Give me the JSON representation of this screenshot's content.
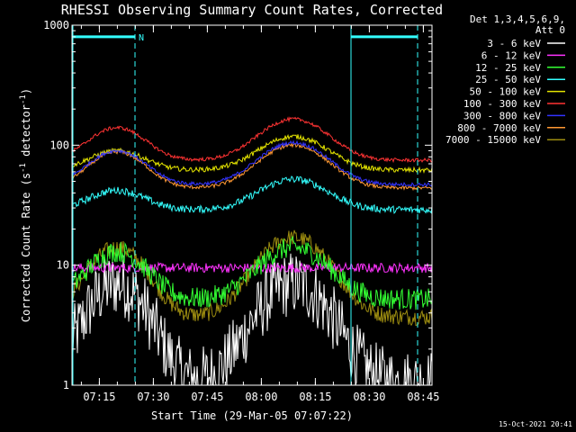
{
  "chart_data": {
    "type": "line",
    "title": "RHESSI Observing Summary Count Rates, Corrected",
    "xlabel": "Start Time (29-Mar-05 07:07:22)",
    "ylabel": "Corrected Count Rate (s",
    "ylabel_sup": "-1",
    "ylabel_tail": " detector",
    "ylabel_end": ")",
    "yscale": "log",
    "ylim": [
      1,
      1000
    ],
    "y_ticks": [
      {
        "v": 1,
        "label": "1"
      },
      {
        "v": 10,
        "label": "10"
      },
      {
        "v": 100,
        "label": "100"
      },
      {
        "v": 1000,
        "label": "1000"
      }
    ],
    "x_range_min": [
      0,
      100
    ],
    "x_ticks": [
      {
        "t": 7.6,
        "label": "07:15"
      },
      {
        "t": 22.6,
        "label": "07:30"
      },
      {
        "t": 37.6,
        "label": "07:45"
      },
      {
        "t": 52.6,
        "label": "08:00"
      },
      {
        "t": 67.6,
        "label": "08:15"
      },
      {
        "t": 82.6,
        "label": "08:30"
      },
      {
        "t": 97.6,
        "label": "08:45"
      }
    ],
    "legend_header": [
      "Det 1,3,4,5,6,9,",
      "Att 0"
    ],
    "legend_position": "right",
    "series": [
      {
        "name": "3 - 6 keV",
        "color": "#ffffff",
        "peaks": [
          7,
          7
        ],
        "base": 1.05,
        "noise": 0.28
      },
      {
        "name": "6 - 12 keV",
        "color": "#ff33ff",
        "peaks": [
          9.5,
          9.5
        ],
        "base": 9.5,
        "noise": 0.04
      },
      {
        "name": "12 - 25 keV",
        "color": "#33ff33",
        "peaks": [
          13,
          14
        ],
        "base": 5.2,
        "noise": 0.09
      },
      {
        "name": "25 - 50 keV",
        "color": "#33ffff",
        "peaks": [
          42,
          52
        ],
        "base": 29,
        "noise": 0.03
      },
      {
        "name": "50 - 100 keV",
        "color": "#e6e600",
        "peaks": [
          90,
          118
        ],
        "base": 62,
        "noise": 0.02
      },
      {
        "name": "100 - 300 keV",
        "color": "#ff3333",
        "peaks": [
          140,
          165
        ],
        "base": 75,
        "noise": 0.015
      },
      {
        "name": "300 - 800 keV",
        "color": "#3333ff",
        "peaks": [
          90,
          105
        ],
        "base": 47,
        "noise": 0.015
      },
      {
        "name": "800 - 7000 keV",
        "color": "#ff9933",
        "peaks": [
          88,
          100
        ],
        "base": 44,
        "noise": 0.015
      },
      {
        "name": "7000 - 15000 keV",
        "color": "#9c8c10",
        "peaks": [
          14,
          17
        ],
        "base": 3.7,
        "noise": 0.07
      }
    ],
    "peak_times_min": [
      12.5,
      61.5
    ],
    "peak_width_min": [
      10,
      12
    ],
    "shaded_intervals": [
      {
        "start": 0,
        "end": 17.5,
        "solid_left": false
      },
      {
        "start": 77.5,
        "end": 96,
        "solid_left": true
      }
    ],
    "bar_marker": "N",
    "timestamp": "15-Oct-2021 20:41"
  }
}
